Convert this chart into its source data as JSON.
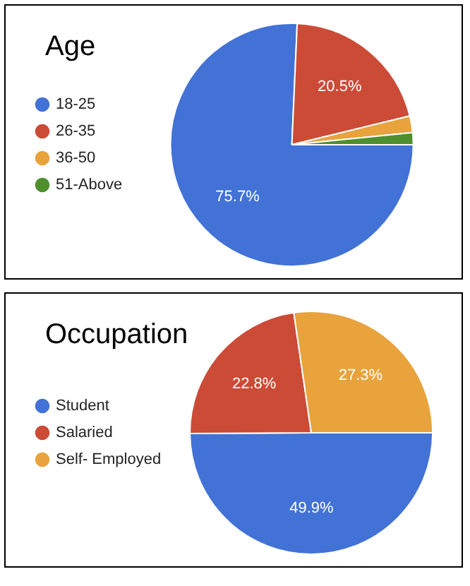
{
  "chart_data": [
    {
      "type": "pie",
      "title": "Age",
      "categories": [
        "18-25",
        "26-35",
        "36-50",
        "51-Above"
      ],
      "values": [
        75.7,
        20.5,
        2.2,
        1.6
      ],
      "colors": [
        "#4272d6",
        "#cc4b37",
        "#e8a33d",
        "#4e8f2e"
      ],
      "value_labels": [
        "75.7%",
        "20.5%",
        null,
        null
      ],
      "legend": "left"
    },
    {
      "type": "pie",
      "title": "Occupation",
      "categories": [
        "Student",
        "Salaried",
        "Self- Employed"
      ],
      "values": [
        49.9,
        22.8,
        27.3
      ],
      "colors": [
        "#4272d6",
        "#cc4b37",
        "#e8a33d"
      ],
      "value_labels": [
        "49.9%",
        "22.8%",
        "27.3%"
      ],
      "legend": "left"
    }
  ]
}
